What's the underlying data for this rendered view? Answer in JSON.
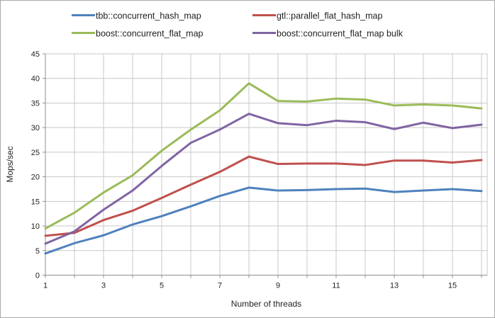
{
  "chart_data": {
    "type": "line",
    "title": "",
    "xlabel": "Number of threads",
    "ylabel": "Mops/sec",
    "x": [
      1,
      2,
      3,
      4,
      5,
      6,
      7,
      8,
      9,
      10,
      11,
      12,
      13,
      14,
      15,
      16
    ],
    "xlim": [
      1,
      16
    ],
    "ylim": [
      0,
      45
    ],
    "grid": true,
    "legend_position": "top",
    "ytick_values": [
      0,
      5,
      10,
      15,
      20,
      25,
      30,
      35,
      40,
      45
    ],
    "xtick_values": [
      1,
      3,
      5,
      7,
      9,
      11,
      13,
      15
    ],
    "xtick_labels": [
      "1",
      "3",
      "5",
      "7",
      "9",
      "11",
      "13",
      "15"
    ],
    "series": [
      {
        "id": "tbb",
        "name": "tbb::concurrent_hash_map",
        "color": "#4F81BD",
        "values": [
          4.4,
          6.5,
          8.1,
          10.3,
          12.0,
          14.0,
          16.1,
          17.8,
          17.2,
          17.3,
          17.5,
          17.6,
          16.9,
          17.2,
          17.5,
          17.1
        ]
      },
      {
        "id": "gtl",
        "name": "gtl::parallel_flat_hash_map",
        "color": "#C0504D",
        "values": [
          8.0,
          8.6,
          11.2,
          13.1,
          15.7,
          18.4,
          21.0,
          24.1,
          22.6,
          22.7,
          22.7,
          22.4,
          23.3,
          23.3,
          22.9,
          23.4
        ]
      },
      {
        "id": "boost",
        "name": "boost::concurrent_flat_map",
        "color": "#9BBB59",
        "values": [
          9.5,
          12.7,
          16.8,
          20.3,
          25.3,
          29.6,
          33.5,
          39.0,
          35.4,
          35.3,
          35.9,
          35.7,
          34.5,
          34.7,
          34.5,
          33.9
        ]
      },
      {
        "id": "boost-bulk",
        "name": "boost::concurrent_flat_map bulk",
        "color": "#8064A2",
        "values": [
          6.4,
          8.9,
          13.3,
          17.2,
          22.2,
          26.9,
          29.6,
          32.8,
          30.9,
          30.5,
          31.4,
          31.1,
          29.7,
          31.0,
          29.9,
          30.6
        ]
      }
    ]
  },
  "colors": {
    "grid": "#C8C8C8",
    "axis": "#8F8F8F",
    "text": "#1F1F1F",
    "frame_border": "#A9A9A9",
    "background": "#FFFFFF"
  }
}
